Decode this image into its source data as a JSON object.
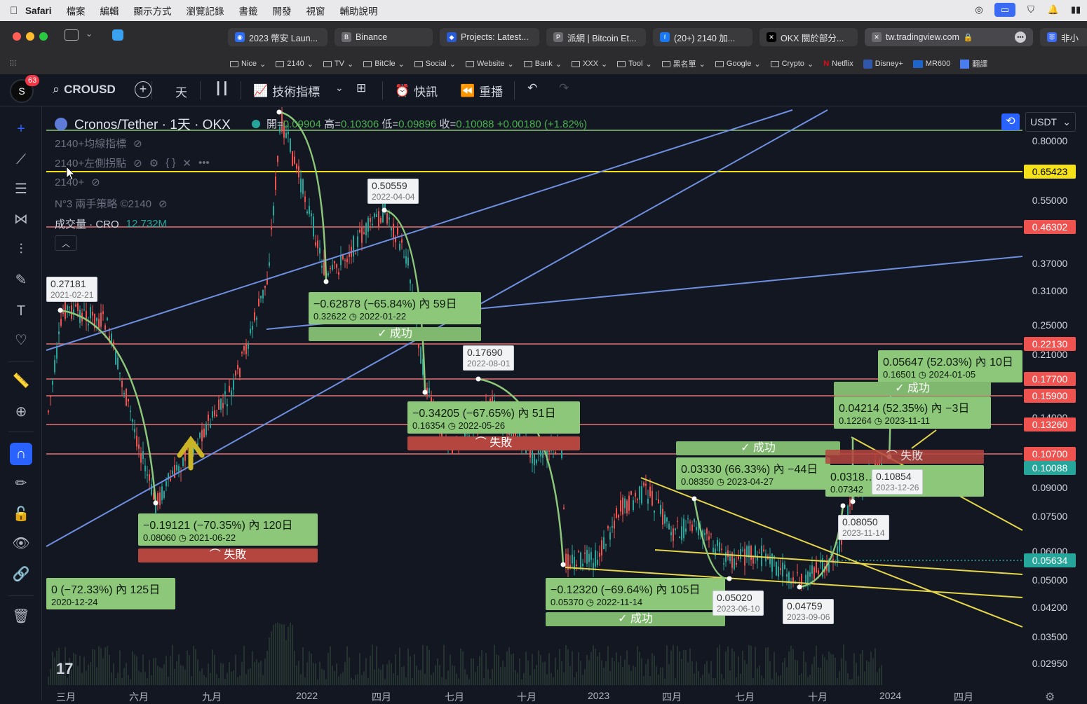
{
  "menubar": {
    "items": [
      "Safari",
      "檔案",
      "編輯",
      "顯示方式",
      "瀏覽記錄",
      "書籤",
      "開發",
      "視窗",
      "輔助說明"
    ]
  },
  "browser": {
    "tabs": [
      {
        "label": "2023 幣安 Laun...",
        "icon": "binance-square-icon"
      },
      {
        "label": "Binance",
        "icon": "binance-icon"
      },
      {
        "label": "Projects: Latest...",
        "icon": "drop-icon"
      },
      {
        "label": "派網 | Bitcoin Et...",
        "icon": "pionex-icon"
      },
      {
        "label": "(20+) 2140 加...",
        "icon": "facebook-icon"
      },
      {
        "label": "OKX 關於部分...",
        "icon": "okx-icon"
      },
      {
        "label": "tw.tradingview.com",
        "icon": "tradingview-icon"
      },
      {
        "label": "非小",
        "icon": "feixiaohao-icon"
      }
    ],
    "bookmarks": [
      "Nice",
      "2140",
      "TV",
      "BitCle",
      "Social",
      "Website",
      "Bank",
      "XXX",
      "Tool",
      "黑名單",
      "Google",
      "Crypto",
      "Netflix",
      "Disney+",
      "MR600",
      "翻譯"
    ]
  },
  "toolbar": {
    "notif_count": "63",
    "symbol": "CROUSD",
    "interval": "天",
    "indicators": "技術指標",
    "alerts": "快訊",
    "replay": "重播"
  },
  "legend": {
    "title": "Cronos/Tether · 1天 · OKX",
    "open_label": "開=",
    "open": "0.09904",
    "high_label": "高=",
    "high": "0.10306",
    "low_label": "低=",
    "low": "0.09896",
    "close_label": "收=",
    "close": "0.10088",
    "change": "+0.00180 (+1.82%)",
    "indicators": [
      "2140+均線指標",
      "2140+左側拐點",
      "2140+",
      "N°3 兩手策略 ©2140"
    ],
    "volume_label": "成交量 · CRO",
    "volume_value": "12.732M"
  },
  "currency": "USDT",
  "price_axis": [
    "0.80000",
    "0.55000",
    "0.37000",
    "0.31000",
    "0.25000",
    "0.21000",
    "0.14000",
    "0.09000",
    "0.07500",
    "0.06000",
    "0.05000",
    "0.04200",
    "0.03500",
    "0.02950"
  ],
  "price_tags": [
    {
      "value": "0.65423",
      "color": "#f5e11a",
      "text_color": "#000000"
    },
    {
      "value": "0.46302",
      "color": "#ef5350",
      "text_color": "#ffffff"
    },
    {
      "value": "0.22130",
      "color": "#ef5350",
      "text_color": "#ffffff"
    },
    {
      "value": "0.17700",
      "color": "#ef5350",
      "text_color": "#ffffff"
    },
    {
      "value": "0.15900",
      "color": "#ef5350",
      "text_color": "#ffffff"
    },
    {
      "value": "0.13260",
      "color": "#ef5350",
      "text_color": "#ffffff"
    },
    {
      "value": "0.10700",
      "color": "#ef5350",
      "text_color": "#ffffff"
    },
    {
      "value": "0.10088",
      "color": "#26a69a",
      "text_color": "#ffffff"
    },
    {
      "value": "0.05634",
      "color": "#26a69a",
      "text_color": "#ffffff"
    }
  ],
  "time_axis": [
    "三月",
    "六月",
    "九月",
    "2022",
    "四月",
    "七月",
    "十月",
    "2023",
    "四月",
    "七月",
    "十月",
    "2024",
    "四月"
  ],
  "notes": [
    {
      "line1": "−0.62878 (−65.84%) 內 59日",
      "line2": "0.32622 ◷ 2022-01-22"
    },
    {
      "line1": "−0.34205 (−67.65%) 內 51日",
      "line2": "0.16354 ◷ 2022-05-26"
    },
    {
      "line1": "−0.19121 (−70.35%) 內 120日",
      "line2": "0.08060 ◷ 2021-06-22"
    },
    {
      "line1": "0 (−72.33%) 內 125日",
      "line2": "2020-12-24"
    },
    {
      "line1": "−0.12320 (−69.64%) 內 105日",
      "line2": "0.05370 ◷ 2022-11-14"
    },
    {
      "line1": "0.03330 (66.33%) 內 −44日",
      "line2": "0.08350 ◷ 2023-04-27"
    },
    {
      "line1": "0.04214 (52.35%) 內 −3日",
      "line2": "0.12264 ◷ 2023-11-11"
    },
    {
      "line1": "0.05647 (52.03%) 內 10日",
      "line2": "0.16501 ◷ 2024-01-05"
    },
    {
      "line1": "0.0318… 內 55日",
      "line2": "0.07342"
    }
  ],
  "badges": {
    "success": "✓ 成功",
    "fail": "⌒ 失敗"
  },
  "price_boxes": [
    {
      "price": "0.27181",
      "date": "2021-02-21"
    },
    {
      "price": "0.50559",
      "date": "2022-04-04"
    },
    {
      "price": "0.17690",
      "date": "2022-08-01"
    },
    {
      "price": "0.10854",
      "date": "2023-12-26"
    },
    {
      "price": "0.08050",
      "date": "2023-11-14"
    },
    {
      "price": "0.05020",
      "date": "2023-06-10"
    },
    {
      "price": "0.04759",
      "date": "2023-09-06"
    }
  ]
}
